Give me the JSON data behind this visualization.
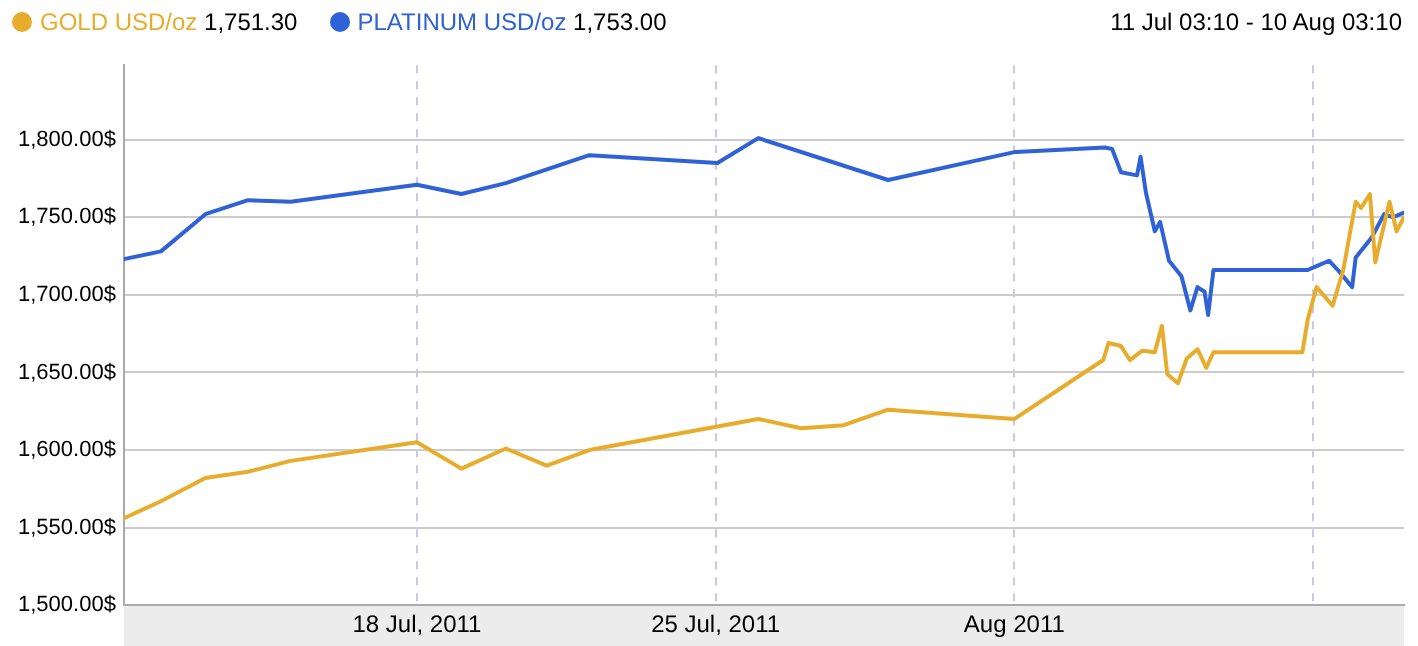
{
  "chart_data": {
    "type": "line",
    "legend": "top left",
    "grid": true,
    "marker": "none",
    "line_style": "solid",
    "annotations": [
      "1,751.30",
      "1,753.00",
      "11 Jul 03:10 - 10 Aug 03:10"
    ],
    "xlim": [
      "2011-07-11T03:10",
      "2011-08-10T03:10"
    ],
    "xticks": [
      {
        "value": "2011-07-18T00:00",
        "label": "18 Jul, 2011"
      },
      {
        "value": "2011-07-25T00:00",
        "label": "25 Jul, 2011"
      },
      {
        "value": "2011-08-01T00:00",
        "label": "Aug 2011"
      },
      {
        "value": "2011-08-08T00:00",
        "label": null
      }
    ],
    "ylim": [
      1500,
      1848
    ],
    "yticks": [
      {
        "value": 1500,
        "label": "1,500.00$"
      },
      {
        "value": 1550,
        "label": "1,550.00$"
      },
      {
        "value": 1600,
        "label": "1,600.00$"
      },
      {
        "value": 1650,
        "label": "1,650.00$"
      },
      {
        "value": 1700,
        "label": "1,700.00$"
      },
      {
        "value": 1750,
        "label": "1,750.00$"
      },
      {
        "value": 1800,
        "label": "1,800.00$"
      }
    ],
    "series": [
      {
        "name": "GOLD USD/oz",
        "color": "#e8ac2c",
        "x": [
          "2011-07-11T03:10",
          "2011-07-12T00:00",
          "2011-07-13T01:00",
          "2011-07-14T01:00",
          "2011-07-15T01:00",
          "2011-07-18T00:00",
          "2011-07-19T01:00",
          "2011-07-20T02:00",
          "2011-07-21T01:00",
          "2011-07-22T01:00",
          "2011-07-26T00:00",
          "2011-07-27T00:00",
          "2011-07-28T00:00",
          "2011-07-29T01:00",
          "2011-08-01T00:00",
          "2011-08-03T02:00",
          "2011-08-03T05:00",
          "2011-08-03T12:00",
          "2011-08-03T17:00",
          "2011-08-04T00:00",
          "2011-08-04T07:00",
          "2011-08-04T11:00",
          "2011-08-04T14:00",
          "2011-08-04T20:00",
          "2011-08-05T01:00",
          "2011-08-05T07:00",
          "2011-08-05T12:00",
          "2011-08-05T16:00",
          "2011-08-07T18:00",
          "2011-08-07T21:00",
          "2011-08-08T02:00",
          "2011-08-08T11:00",
          "2011-08-08T17:00",
          "2011-08-09T00:00",
          "2011-08-09T03:00",
          "2011-08-09T08:00",
          "2011-08-09T11:00",
          "2011-08-09T19:00",
          "2011-08-09T23:00",
          "2011-08-10T03:10"
        ],
        "values": [
          1556,
          1567,
          1582,
          1586,
          1593,
          1605,
          1588,
          1601,
          1590,
          1600,
          1620,
          1614,
          1616,
          1626,
          1620,
          1658,
          1669,
          1667,
          1658,
          1664,
          1663,
          1680,
          1649,
          1643,
          1659,
          1665,
          1653,
          1663,
          1663,
          1684,
          1705,
          1693,
          1716,
          1760,
          1756,
          1765,
          1721,
          1760,
          1741,
          1750
        ]
      },
      {
        "name": "PLATINUM USD/oz",
        "color": "#2f62d6",
        "x": [
          "2011-07-11T03:10",
          "2011-07-12T00:00",
          "2011-07-13T01:00",
          "2011-07-14T01:00",
          "2011-07-15T01:00",
          "2011-07-18T00:00",
          "2011-07-19T01:00",
          "2011-07-20T02:00",
          "2011-07-22T01:00",
          "2011-07-25T01:00",
          "2011-07-26T00:00",
          "2011-07-29T01:00",
          "2011-08-01T00:00",
          "2011-08-03T03:00",
          "2011-08-03T07:00",
          "2011-08-03T12:00",
          "2011-08-03T21:00",
          "2011-08-03T23:00",
          "2011-08-04T02:00",
          "2011-08-04T07:00",
          "2011-08-04T10:00",
          "2011-08-04T15:00",
          "2011-08-04T22:00",
          "2011-08-05T03:00",
          "2011-08-05T07:00",
          "2011-08-05T11:00",
          "2011-08-05T13:00",
          "2011-08-05T16:00",
          "2011-08-07T21:00",
          "2011-08-08T01:00",
          "2011-08-08T09:00",
          "2011-08-08T14:00",
          "2011-08-08T22:00",
          "2011-08-09T00:00",
          "2011-08-09T09:00",
          "2011-08-09T16:00",
          "2011-08-09T21:00",
          "2011-08-10T03:10"
        ],
        "values": [
          1723,
          1728,
          1752,
          1761,
          1760,
          1771,
          1765,
          1772,
          1790,
          1785,
          1801,
          1774,
          1792,
          1795,
          1794,
          1779,
          1777,
          1789,
          1766,
          1741,
          1747,
          1722,
          1712,
          1690,
          1705,
          1702,
          1687,
          1716,
          1716,
          1718,
          1722,
          1716,
          1705,
          1724,
          1737,
          1752,
          1750,
          1753
        ]
      }
    ]
  }
}
